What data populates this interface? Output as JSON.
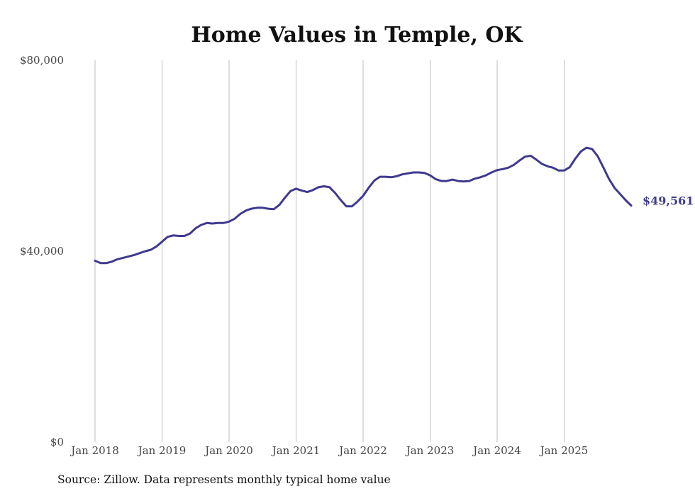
{
  "chart_data": {
    "type": "line",
    "title": "Home Values in Temple, OK",
    "xlabel": "",
    "ylabel": "",
    "ylim": [
      0,
      80000
    ],
    "y_ticks": [
      0,
      40000,
      80000
    ],
    "y_tick_labels": [
      "$0",
      "$40,000",
      "$80,000"
    ],
    "x_ticks": [
      2018,
      2019,
      2020,
      2021,
      2022,
      2023,
      2024,
      2025
    ],
    "x_tick_labels": [
      "Jan 2018",
      "Jan 2019",
      "Jan 2020",
      "Jan 2021",
      "Jan 2022",
      "Jan 2023",
      "Jan 2024",
      "Jan 2025"
    ],
    "grid": "vertical",
    "series": [
      {
        "name": "Typical home value",
        "color": "#3f3a8f",
        "end_label": "$49,561",
        "x_start": 2018,
        "x_step_months": 1,
        "values": [
          38000,
          37500,
          37500,
          37800,
          38300,
          38600,
          38900,
          39200,
          39600,
          40000,
          40300,
          41000,
          42000,
          43000,
          43300,
          43200,
          43200,
          43700,
          44800,
          45500,
          45900,
          45800,
          45900,
          45900,
          46200,
          46800,
          47800,
          48500,
          48900,
          49100,
          49100,
          48900,
          48800,
          49700,
          51200,
          52600,
          53100,
          52700,
          52400,
          52800,
          53400,
          53600,
          53400,
          52200,
          50700,
          49400,
          49400,
          50400,
          51600,
          53300,
          54800,
          55600,
          55600,
          55500,
          55700,
          56100,
          56300,
          56500,
          56500,
          56400,
          55900,
          55100,
          54700,
          54700,
          55000,
          54700,
          54600,
          54700,
          55200,
          55500,
          55900,
          56500,
          57000,
          57200,
          57500,
          58100,
          59000,
          59800,
          60000,
          59200,
          58300,
          57800,
          57500,
          56900,
          56900,
          57600,
          59400,
          60900,
          61700,
          61400,
          59900,
          57600,
          55200,
          53300,
          52000,
          50700,
          49561
        ]
      }
    ]
  },
  "source_text": "Source: Zillow. Data represents monthly typical home value"
}
